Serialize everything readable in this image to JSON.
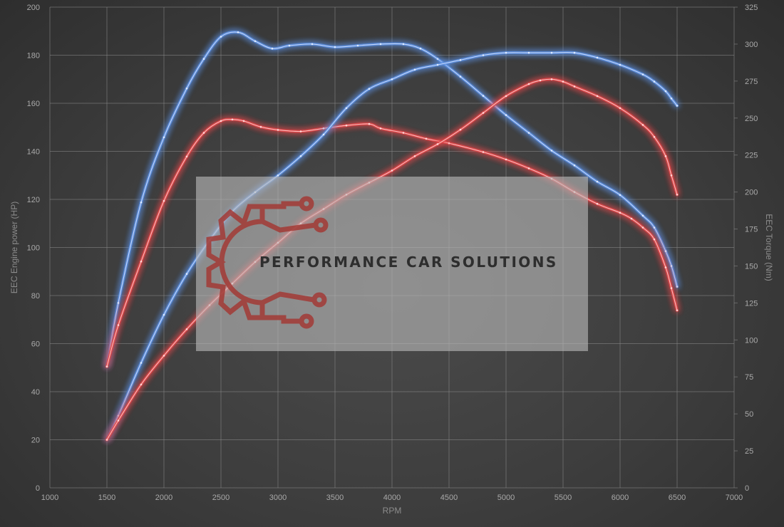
{
  "chart_data": {
    "type": "line",
    "title": "",
    "xlabel": "RPM",
    "ylabel": "EEC Engine power (HP)",
    "y2label": "EEC Torque (Nm)",
    "xlim": [
      1000,
      7000
    ],
    "ylim": [
      0,
      200
    ],
    "y2lim": [
      0,
      325
    ],
    "x_ticks": [
      1000,
      1500,
      2000,
      2500,
      3000,
      3500,
      4000,
      4500,
      5000,
      5500,
      6000,
      6500,
      7000
    ],
    "y_ticks": [
      0,
      20,
      40,
      60,
      80,
      100,
      120,
      140,
      160,
      180,
      200
    ],
    "y2_ticks": [
      0,
      25,
      50,
      75,
      100,
      125,
      150,
      175,
      200,
      225,
      250,
      275,
      300,
      325
    ],
    "grid": true,
    "legend": "none",
    "series": [
      {
        "color": "#5b8fe0",
        "axis": "right",
        "x": [
          1500,
          1600,
          1800,
          2000,
          2200,
          2350,
          2500,
          2650,
          2800,
          2950,
          3100,
          3300,
          3500,
          3700,
          3900,
          4100,
          4250,
          4400,
          4600,
          4800,
          5000,
          5200,
          5400,
          5600,
          5800,
          6000,
          6200,
          6300,
          6400,
          6450,
          6500
        ],
        "y": [
          82,
          125,
          193,
          237,
          270,
          290,
          305,
          308,
          302,
          297,
          299,
          300,
          298,
          299,
          300,
          300,
          297,
          290,
          278,
          265,
          252,
          240,
          228,
          218,
          207,
          198,
          184,
          176,
          160,
          150,
          136
        ]
      },
      {
        "color": "#e0464a",
        "axis": "right",
        "x": [
          1500,
          1600,
          1800,
          2000,
          2200,
          2350,
          2500,
          2600,
          2700,
          2850,
          3000,
          3200,
          3400,
          3600,
          3800,
          3900,
          4100,
          4300,
          4500,
          4800,
          5000,
          5200,
          5400,
          5600,
          5800,
          6000,
          6100,
          6200,
          6300,
          6400,
          6450,
          6500
        ],
        "y": [
          82,
          110,
          153,
          194,
          224,
          240,
          248,
          249,
          248,
          244,
          242,
          241,
          243,
          245,
          246,
          243,
          240,
          236,
          233,
          227,
          222,
          216,
          209,
          200,
          192,
          186,
          182,
          176,
          168,
          149,
          135,
          120
        ]
      },
      {
        "color": "#5b8fe0",
        "axis": "left",
        "x": [
          1500,
          1600,
          1800,
          2000,
          2200,
          2400,
          2600,
          2800,
          3000,
          3200,
          3400,
          3600,
          3800,
          4000,
          4200,
          4400,
          4600,
          4800,
          5000,
          5200,
          5400,
          5600,
          5800,
          6000,
          6200,
          6300,
          6400,
          6450,
          6500
        ],
        "y": [
          20,
          30,
          52,
          72,
          89,
          103,
          115,
          123,
          130,
          138,
          147,
          158,
          166,
          170,
          174,
          176,
          178,
          180,
          181,
          181,
          181,
          181,
          179,
          176,
          172,
          169,
          165,
          162,
          159
        ]
      },
      {
        "color": "#e0464a",
        "axis": "left",
        "x": [
          1500,
          1600,
          1800,
          2000,
          2200,
          2400,
          2600,
          2800,
          3000,
          3200,
          3400,
          3600,
          3800,
          4000,
          4200,
          4400,
          4600,
          4800,
          5000,
          5200,
          5300,
          5400,
          5500,
          5600,
          5800,
          6000,
          6200,
          6300,
          6400,
          6450,
          6500
        ],
        "y": [
          20,
          28,
          43,
          55,
          66,
          76,
          85,
          94,
          102,
          110,
          116,
          122,
          127,
          132,
          138,
          143,
          149,
          156,
          163,
          168,
          169.5,
          170,
          169,
          167,
          163,
          158,
          151,
          146,
          138,
          130,
          122
        ]
      }
    ]
  },
  "watermark": {
    "brand": "PERFORMANCE CAR SOLUTIONS",
    "icon": "gear-circuit-logo-icon"
  }
}
